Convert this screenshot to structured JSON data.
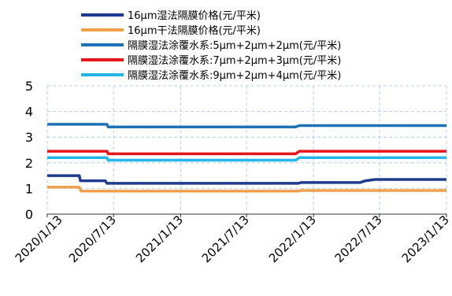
{
  "chart_data": {
    "type": "line",
    "title": "",
    "xlabel": "",
    "ylabel": "",
    "ylim": [
      0,
      5
    ],
    "yticks": [
      0,
      1,
      2,
      3,
      4,
      5
    ],
    "xlim": [
      "2020-01-13",
      "2023-01-13"
    ],
    "xticks": [
      "2020/1/13",
      "2020/7/13",
      "2021/1/13",
      "2021/7/13",
      "2022/1/13",
      "2022/7/13",
      "2023/1/13"
    ],
    "grid": true,
    "legend_position": "top",
    "series": [
      {
        "name": "16μm湿法隔膜价格(元/平米)",
        "color": "#1f3b8f",
        "points": [
          [
            "2020-01-13",
            1.5
          ],
          [
            "2020-04-10",
            1.5
          ],
          [
            "2020-04-13",
            1.3
          ],
          [
            "2020-06-20",
            1.3
          ],
          [
            "2020-06-25",
            1.2
          ],
          [
            "2021-12-01",
            1.2
          ],
          [
            "2021-12-10",
            1.23
          ],
          [
            "2022-05-20",
            1.23
          ],
          [
            "2022-06-05",
            1.3
          ],
          [
            "2022-07-01",
            1.35
          ],
          [
            "2023-01-13",
            1.35
          ]
        ]
      },
      {
        "name": "16μm干法隔膜价格(元/平米)",
        "color": "#f0a04b",
        "points": [
          [
            "2020-01-13",
            1.05
          ],
          [
            "2020-04-10",
            1.05
          ],
          [
            "2020-04-15",
            0.9
          ],
          [
            "2021-12-01",
            0.9
          ],
          [
            "2021-12-10",
            0.92
          ],
          [
            "2023-01-13",
            0.92
          ]
        ]
      },
      {
        "name": "隔膜湿法涂覆水系:5μm+2μm+2μm(元/平米)",
        "color": "#1f72b8",
        "points": [
          [
            "2020-01-13",
            3.5
          ],
          [
            "2020-06-25",
            3.5
          ],
          [
            "2020-06-28",
            3.4
          ],
          [
            "2021-11-25",
            3.4
          ],
          [
            "2021-12-05",
            3.45
          ],
          [
            "2023-01-13",
            3.45
          ]
        ]
      },
      {
        "name": "隔膜湿法涂覆水系:7μm+2μm+3μm(元/平米)",
        "color": "#e8141c",
        "points": [
          [
            "2020-01-13",
            2.45
          ],
          [
            "2020-06-25",
            2.45
          ],
          [
            "2020-06-28",
            2.35
          ],
          [
            "2021-11-25",
            2.35
          ],
          [
            "2021-12-05",
            2.45
          ],
          [
            "2023-01-13",
            2.45
          ]
        ]
      },
      {
        "name": "隔膜湿法涂覆水系:9μm+2μm+4μm(元/平米)",
        "color": "#24b6e9",
        "points": [
          [
            "2020-01-13",
            2.2
          ],
          [
            "2020-06-25",
            2.2
          ],
          [
            "2020-06-28",
            2.1
          ],
          [
            "2021-11-25",
            2.1
          ],
          [
            "2021-12-05",
            2.2
          ],
          [
            "2023-01-13",
            2.2
          ]
        ]
      }
    ]
  }
}
